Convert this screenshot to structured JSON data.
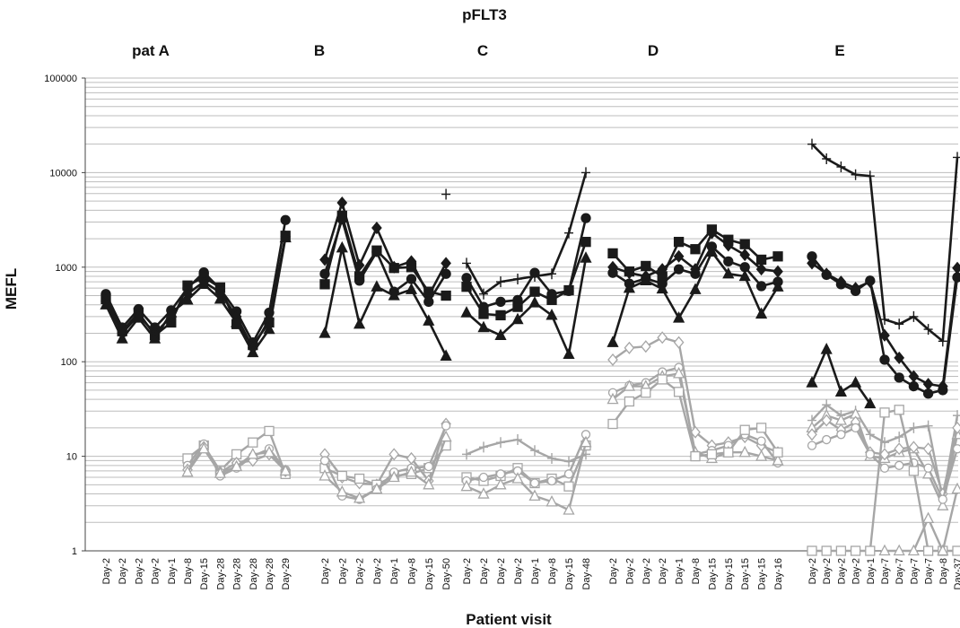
{
  "chart_data": {
    "type": "line",
    "title": "pFLT3",
    "xlabel": "Patient visit",
    "ylabel": "MEFL",
    "yscale": "log",
    "ylim": [
      1,
      100000
    ],
    "yticks": [
      1,
      10,
      100,
      1000,
      10000,
      100000
    ],
    "grid": true,
    "colors": {
      "dark": "#1a1a1a",
      "light": "#a6a6a6"
    },
    "panels": [
      {
        "label": "pat A",
        "categories": [
          "Day-2",
          "Day-2",
          "Day-2",
          "Day-2",
          "Day-1",
          "Day-8",
          "Day-15",
          "Day-28",
          "Day-28",
          "Day-28",
          "Day-28",
          "Day-29"
        ],
        "series": [
          {
            "marker": "circle",
            "color": "dark",
            "values": [
              520,
              230,
              360,
              230,
              350,
              600,
              880,
              590,
              340,
              160,
              330,
              3150
            ]
          },
          {
            "marker": "square",
            "color": "dark",
            "values": [
              460,
              210,
              330,
              190,
              260,
              640,
              780,
              610,
              250,
              150,
              260,
              2150
            ]
          },
          {
            "marker": "diamond",
            "color": "dark",
            "values": [
              440,
              200,
              310,
              200,
              300,
              520,
              700,
              540,
              300,
              140,
              280,
              2100
            ]
          },
          {
            "marker": "triangle",
            "color": "dark",
            "values": [
              400,
              175,
              290,
              175,
              330,
              450,
              660,
              460,
              260,
              125,
              220,
              2050
            ]
          },
          {
            "marker": "open-square",
            "color": "light",
            "values": [
              null,
              null,
              null,
              null,
              null,
              9.5,
              13,
              7,
              10.5,
              14,
              18.5,
              6.5
            ]
          },
          {
            "marker": "open-circle",
            "color": "light",
            "values": [
              null,
              null,
              null,
              null,
              null,
              8,
              13.5,
              6.2,
              7.5,
              10,
              12,
              7.2
            ]
          },
          {
            "marker": "open-diamond",
            "color": "light",
            "values": [
              null,
              null,
              null,
              null,
              null,
              7.2,
              12.5,
              6.8,
              8.5,
              9,
              10.5,
              7
            ]
          },
          {
            "marker": "open-triangle",
            "color": "light",
            "values": [
              null,
              null,
              null,
              null,
              null,
              6.8,
              12,
              6.6,
              7.8,
              10.5,
              11,
              7
            ]
          }
        ]
      },
      {
        "label": "B",
        "categories": [
          "Day-2",
          "Day-2",
          "Day-2",
          "Day-2",
          "Day-1",
          "Day-8",
          "Day-15",
          "Day-50"
        ],
        "series": [
          {
            "marker": "diamond",
            "color": "dark",
            "values": [
              1200,
              4800,
              1050,
              2600,
              1000,
              1150,
              500,
              1100
            ]
          },
          {
            "marker": "square",
            "color": "dark",
            "values": [
              660,
              3500,
              800,
              1500,
              980,
              1000,
              550,
              500
            ]
          },
          {
            "marker": "circle",
            "color": "dark",
            "values": [
              850,
              3200,
              720,
              1450,
              550,
              750,
              430,
              850
            ]
          },
          {
            "marker": "triangle",
            "color": "dark",
            "values": [
              200,
              1600,
              250,
              620,
              500,
              580,
              270,
              115
            ]
          },
          {
            "marker": "plus",
            "color": "dark",
            "values": [
              null,
              null,
              null,
              null,
              null,
              null,
              null,
              5900
            ]
          },
          {
            "marker": "open-diamond",
            "color": "light",
            "values": [
              10.5,
              6,
              5.2,
              5,
              10.5,
              9.5,
              5.5,
              22
            ]
          },
          {
            "marker": "open-square",
            "color": "light",
            "values": [
              7.5,
              6.2,
              5.8,
              5,
              6.2,
              6.5,
              7.5,
              13
            ]
          },
          {
            "marker": "open-circle",
            "color": "light",
            "values": [
              9,
              3.8,
              3.5,
              4.5,
              6.8,
              7.5,
              7.8,
              21
            ]
          },
          {
            "marker": "open-triangle",
            "color": "light",
            "values": [
              6.2,
              4.2,
              3.6,
              4.5,
              6,
              6.8,
              5,
              16
            ]
          }
        ]
      },
      {
        "label": "C",
        "categories": [
          "Day-2",
          "Day-2",
          "Day-2",
          "Day-2",
          "Day-1",
          "Day-8",
          "Day-15",
          "Day-48"
        ],
        "series": [
          {
            "marker": "plus",
            "color": "dark",
            "values": [
              1100,
              520,
              700,
              750,
              800,
              850,
              2300,
              10000
            ]
          },
          {
            "marker": "circle",
            "color": "dark",
            "values": [
              770,
              380,
              430,
              450,
              870,
              520,
              560,
              3300
            ]
          },
          {
            "marker": "square",
            "color": "dark",
            "values": [
              620,
              320,
              310,
              380,
              550,
              450,
              570,
              1850
            ]
          },
          {
            "marker": "triangle",
            "color": "dark",
            "values": [
              330,
              230,
              190,
              280,
              420,
              310,
              120,
              1250
            ]
          },
          {
            "marker": "plus",
            "color": "light",
            "values": [
              10.5,
              12.5,
              14,
              15,
              11.5,
              9.5,
              8.8,
              10.5
            ]
          },
          {
            "marker": "open-square",
            "color": "light",
            "values": [
              6,
              5.5,
              6.2,
              7.5,
              5.2,
              5.8,
              4.8,
              13
            ]
          },
          {
            "marker": "open-circle",
            "color": "light",
            "values": [
              5.5,
              6,
              6.5,
              7,
              5.2,
              5.5,
              6.5,
              17
            ]
          },
          {
            "marker": "open-triangle",
            "color": "light",
            "values": [
              4.8,
              4,
              5,
              5.8,
              3.8,
              3.3,
              2.7,
              14
            ]
          }
        ]
      },
      {
        "label": "D",
        "categories": [
          "Day-2",
          "Day-2",
          "Day-2",
          "Day-2",
          "Day-1",
          "Day-8",
          "Day-15",
          "Day-15",
          "Day-15",
          "Day-15",
          "Day-16"
        ],
        "series": [
          {
            "marker": "square",
            "color": "dark",
            "values": [
              1400,
              900,
              1030,
              800,
              1850,
              1550,
              2500,
              1950,
              1750,
              1200,
              1300
            ]
          },
          {
            "marker": "diamond",
            "color": "dark",
            "values": [
              1000,
              870,
              800,
              950,
              1300,
              950,
              2300,
              1700,
              1350,
              950,
              900
            ]
          },
          {
            "marker": "circle",
            "color": "dark",
            "values": [
              870,
              670,
              760,
              670,
              950,
              850,
              1650,
              1150,
              1000,
              630,
              700
            ]
          },
          {
            "marker": "triangle",
            "color": "dark",
            "values": [
              160,
              600,
              720,
              590,
              290,
              580,
              1450,
              850,
              800,
              320,
              620
            ]
          },
          {
            "marker": "open-diamond",
            "color": "light",
            "values": [
              105,
              140,
              145,
              180,
              160,
              18,
              13,
              14,
              16,
              13,
              11
            ]
          },
          {
            "marker": "open-circle",
            "color": "light",
            "values": [
              47,
              56,
              60,
              78,
              87,
              10.5,
              11.5,
              13,
              17,
              14.5,
              8.5
            ]
          },
          {
            "marker": "open-triangle",
            "color": "light",
            "values": [
              40,
              55,
              55,
              70,
              75,
              11,
              9.5,
              11,
              11,
              10,
              9
            ]
          },
          {
            "marker": "open-square",
            "color": "light",
            "values": [
              22,
              38,
              47,
              65,
              48,
              10,
              10.5,
              11,
              19,
              20,
              11
            ]
          }
        ]
      },
      {
        "label": "E",
        "categories": [
          "Day-2",
          "Day-2",
          "Day-2",
          "Day-2",
          "Day-1",
          "Day-7",
          "Day-7",
          "Day-7",
          "Day-7",
          "Day-8",
          "Day-37"
        ],
        "series": [
          {
            "marker": "plus",
            "color": "dark",
            "values": [
              20000,
              14000,
              11500,
              9500,
              9200,
              280,
              250,
              300,
              220,
              165,
              14500
            ]
          },
          {
            "marker": "circle",
            "color": "dark",
            "values": [
              1300,
              830,
              660,
              560,
              720,
              105,
              68,
              55,
              46,
              50,
              780
            ]
          },
          {
            "marker": "diamond",
            "color": "dark",
            "values": [
              1100,
              850,
              700,
              600,
              700,
              190,
              110,
              70,
              58,
              55,
              980
            ]
          },
          {
            "marker": "triangle",
            "color": "dark",
            "values": [
              60,
              135,
              48,
              60,
              36,
              null,
              null,
              null,
              null,
              null,
              null
            ]
          },
          {
            "marker": "plus",
            "color": "light",
            "values": [
              24,
              35,
              27,
              30,
              17,
              14,
              16,
              20,
              21,
              3.5,
              27
            ]
          },
          {
            "marker": "open-triangle",
            "color": "light",
            "values": [
              20,
              27,
              24,
              28,
              10,
              9.5,
              11,
              12,
              6.5,
              3,
              17
            ]
          },
          {
            "marker": "open-diamond",
            "color": "light",
            "values": [
              17,
              24,
              19,
              23,
              11,
              10.5,
              12,
              12.5,
              12,
              4,
              20
            ]
          },
          {
            "marker": "open-circle",
            "color": "light",
            "values": [
              13,
              15,
              17,
              20,
              10.5,
              7.5,
              8,
              8.5,
              7.5,
              3.5,
              12
            ]
          },
          {
            "marker": "open-square",
            "color": "light",
            "values": [
              1,
              1,
              1,
              1,
              1,
              29,
              31,
              7,
              1,
              1,
              1
            ]
          },
          {
            "marker": "open-triangle",
            "color": "light",
            "values": [
              null,
              null,
              null,
              null,
              null,
              1,
              1,
              1,
              2.2,
              1,
              4.5
            ]
          }
        ]
      }
    ]
  }
}
